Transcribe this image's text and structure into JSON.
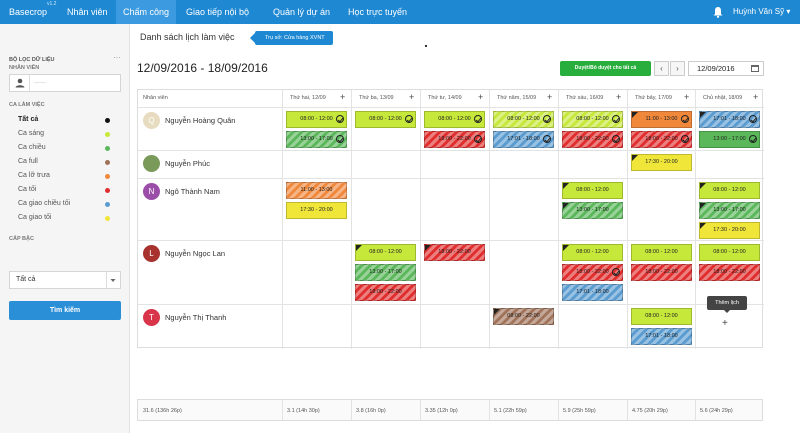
{
  "topbar": {
    "brand": "Basecrop",
    "version": "v1.2",
    "nav": [
      "Nhân viên",
      "Chấm công",
      "Giao tiếp nội bộ",
      "Quản lý dự án",
      "Học trực tuyến"
    ],
    "active_nav": "Chấm công",
    "user_name": "Huỳnh Văn Sỹ",
    "bell_icon": "bell-icon"
  },
  "sidebar": {
    "title": "BỘ LỌC DỮ LIỆU",
    "more": "···",
    "employee_label": "NHÂN VIÊN",
    "employee_placeholder": "······",
    "shift_label": "CA LÀM VIỆC",
    "shifts": [
      {
        "label": "Tất cả",
        "color": "#111111"
      },
      {
        "label": "Ca sáng",
        "color": "#c6e83a"
      },
      {
        "label": "Ca chiều",
        "color": "#5ab75a"
      },
      {
        "label": "Ca full",
        "color": "#a0735a"
      },
      {
        "label": "Ca lỡ trưa",
        "color": "#f0883c"
      },
      {
        "label": "Ca tối",
        "color": "#e02e2e"
      },
      {
        "label": "Ca giao chiều tối",
        "color": "#5a9bd0"
      },
      {
        "label": "Ca giao tối",
        "color": "#f0e63a"
      }
    ],
    "level_label": "CẤP BẬC",
    "level_value": "Tất cả",
    "search_button": "Tìm kiếm"
  },
  "main": {
    "title": "Danh sách lịch làm việc",
    "branch": "Trụ sở: Cửa hàng XVNT",
    "range": "12/09/2016 - 18/09/2016",
    "approve_all": "Duyệt/Bỏ duyệt cho tất cả",
    "prev": "‹",
    "next": "›",
    "date_value": "12/09/2016",
    "tooltip": "Thêm lịch",
    "add_symbol": "+"
  },
  "table": {
    "col_employee": "Nhân viên",
    "days": [
      "Thứ hai, 12/09",
      "Thứ ba, 13/09",
      "Thứ tư, 14/09",
      "Thứ năm, 15/09",
      "Thứ sáu, 16/09",
      "Thứ bảy, 17/09",
      "Chủ nhật, 18/09"
    ],
    "employees": [
      {
        "name": "Nguyễn Hoàng Quân",
        "initial": "Q",
        "avatar_color": "#e8dcc0"
      },
      {
        "name": "Nguyễn Phúc",
        "initial": "",
        "avatar_color": "#7a9a5a"
      },
      {
        "name": "Ngô Thành Nam",
        "initial": "N",
        "avatar_color": "#9a4ea8"
      },
      {
        "name": "Nguyễn Ngọc Lan",
        "initial": "L",
        "avatar_color": "#a8322e"
      },
      {
        "name": "Nguyễn Thị Thanh",
        "initial": "T",
        "avatar_color": "#d8344a"
      }
    ],
    "shifts": [
      {
        "row": 0,
        "day": 0,
        "slot": 0,
        "time": "08:00 - 12:00",
        "color": "#c6e83a",
        "striped": false,
        "flag": false,
        "ok": true
      },
      {
        "row": 0,
        "day": 0,
        "slot": 1,
        "time": "13:00 - 17:00",
        "color": "#5ab75a",
        "striped": true,
        "flag": false,
        "ok": true
      },
      {
        "row": 0,
        "day": 1,
        "slot": 0,
        "time": "08:00 - 12:00",
        "color": "#c6e83a",
        "striped": false,
        "flag": false,
        "ok": true
      },
      {
        "row": 0,
        "day": 2,
        "slot": 0,
        "time": "08:00 - 12:00",
        "color": "#c6e83a",
        "striped": false,
        "flag": false,
        "ok": true
      },
      {
        "row": 0,
        "day": 2,
        "slot": 1,
        "time": "18:00 - 22:00",
        "color": "#e02e2e",
        "striped": true,
        "flag": false,
        "ok": true
      },
      {
        "row": 0,
        "day": 3,
        "slot": 0,
        "time": "08:00 - 12:00",
        "color": "#c6e83a",
        "striped": true,
        "flag": false,
        "ok": true
      },
      {
        "row": 0,
        "day": 3,
        "slot": 1,
        "time": "17:01 - 18:00",
        "color": "#5a9bd0",
        "striped": true,
        "flag": false,
        "ok": true
      },
      {
        "row": 0,
        "day": 4,
        "slot": 0,
        "time": "08:00 - 12:00",
        "color": "#c6e83a",
        "striped": true,
        "flag": false,
        "ok": true
      },
      {
        "row": 0,
        "day": 4,
        "slot": 1,
        "time": "18:00 - 22:00",
        "color": "#e02e2e",
        "striped": true,
        "flag": false,
        "ok": true
      },
      {
        "row": 0,
        "day": 5,
        "slot": 0,
        "time": "11:00 - 13:00",
        "color": "#f0883c",
        "striped": false,
        "flag": true,
        "ok": true
      },
      {
        "row": 0,
        "day": 5,
        "slot": 1,
        "time": "18:00 - 22:00",
        "color": "#e02e2e",
        "striped": true,
        "flag": false,
        "ok": true
      },
      {
        "row": 0,
        "day": 6,
        "slot": 0,
        "time": "17:01 - 18:00",
        "color": "#5a9bd0",
        "striped": true,
        "flag": true,
        "ok": true
      },
      {
        "row": 0,
        "day": 6,
        "slot": 1,
        "time": "13:00 - 17:00",
        "color": "#5ab75a",
        "striped": false,
        "flag": false,
        "ok": true
      },
      {
        "row": 1,
        "day": 5,
        "slot": 0,
        "time": "17:30 - 20:00",
        "color": "#f0e63a",
        "striped": false,
        "flag": true,
        "ok": false
      },
      {
        "row": 2,
        "day": 0,
        "slot": 0,
        "time": "11:00 - 13:00",
        "color": "#f0883c",
        "striped": true,
        "flag": false,
        "ok": false
      },
      {
        "row": 2,
        "day": 0,
        "slot": 1,
        "time": "17:30 - 20:00",
        "color": "#f0e63a",
        "striped": false,
        "flag": false,
        "ok": false
      },
      {
        "row": 2,
        "day": 4,
        "slot": 0,
        "time": "08:00 - 12:00",
        "color": "#c6e83a",
        "striped": false,
        "flag": true,
        "ok": false
      },
      {
        "row": 2,
        "day": 4,
        "slot": 1,
        "time": "13:00 - 17:00",
        "color": "#5ab75a",
        "striped": true,
        "flag": true,
        "ok": false
      },
      {
        "row": 2,
        "day": 6,
        "slot": 0,
        "time": "08:00 - 12:00",
        "color": "#c6e83a",
        "striped": false,
        "flag": true,
        "ok": false
      },
      {
        "row": 2,
        "day": 6,
        "slot": 1,
        "time": "13:00 - 17:00",
        "color": "#5ab75a",
        "striped": true,
        "flag": true,
        "ok": false
      },
      {
        "row": 2,
        "day": 6,
        "slot": 2,
        "time": "17:30 - 20:00",
        "color": "#f0e63a",
        "striped": false,
        "flag": true,
        "ok": false
      },
      {
        "row": 3,
        "day": 1,
        "slot": 0,
        "time": "08:00 - 12:00",
        "color": "#c6e83a",
        "striped": false,
        "flag": true,
        "ok": false
      },
      {
        "row": 3,
        "day": 1,
        "slot": 1,
        "time": "13:00 - 17:00",
        "color": "#5ab75a",
        "striped": true,
        "flag": false,
        "ok": false
      },
      {
        "row": 3,
        "day": 1,
        "slot": 2,
        "time": "18:00 - 22:00",
        "color": "#e02e2e",
        "striped": true,
        "flag": false,
        "ok": false
      },
      {
        "row": 3,
        "day": 2,
        "slot": 0,
        "time": "18:00 - 22:00",
        "color": "#e02e2e",
        "striped": true,
        "flag": true,
        "ok": false
      },
      {
        "row": 3,
        "day": 4,
        "slot": 0,
        "time": "08:00 - 12:00",
        "color": "#c6e83a",
        "striped": false,
        "flag": true,
        "ok": false
      },
      {
        "row": 3,
        "day": 4,
        "slot": 1,
        "time": "18:00 - 22:00",
        "color": "#e02e2e",
        "striped": true,
        "flag": false,
        "ok": true
      },
      {
        "row": 3,
        "day": 4,
        "slot": 2,
        "time": "17:01 - 18:00",
        "color": "#5a9bd0",
        "striped": true,
        "flag": false,
        "ok": false
      },
      {
        "row": 3,
        "day": 5,
        "slot": 0,
        "time": "08:00 - 12:00",
        "color": "#c6e83a",
        "striped": false,
        "flag": false,
        "ok": false
      },
      {
        "row": 3,
        "day": 5,
        "slot": 1,
        "time": "18:00 - 22:00",
        "color": "#e02e2e",
        "striped": true,
        "flag": false,
        "ok": false
      },
      {
        "row": 3,
        "day": 6,
        "slot": 0,
        "time": "08:00 - 12:00",
        "color": "#c6e83a",
        "striped": false,
        "flag": false,
        "ok": false
      },
      {
        "row": 3,
        "day": 6,
        "slot": 1,
        "time": "18:00 - 22:00",
        "color": "#e02e2e",
        "striped": true,
        "flag": false,
        "ok": false
      },
      {
        "row": 4,
        "day": 3,
        "slot": 0,
        "time": "08:00 - 22:00",
        "color": "#a0735a",
        "striped": true,
        "flag": true,
        "ok": false
      },
      {
        "row": 4,
        "day": 5,
        "slot": 0,
        "time": "08:00 - 12:00",
        "color": "#c6e83a",
        "striped": false,
        "flag": false,
        "ok": false
      },
      {
        "row": 4,
        "day": 5,
        "slot": 1,
        "time": "17:01 - 18:00",
        "color": "#5a9bd0",
        "striped": true,
        "flag": false,
        "ok": false
      }
    ],
    "totals": [
      "31.6 (136h 26p)",
      "3.1 (14h 30p)",
      "3.8 (16h 0p)",
      "3.35 (12h 0p)",
      "5.1 (22h 59p)",
      "5.9 (25h 59p)",
      "4.75 (20h 29p)",
      "5.6 (24h 29p)"
    ]
  }
}
